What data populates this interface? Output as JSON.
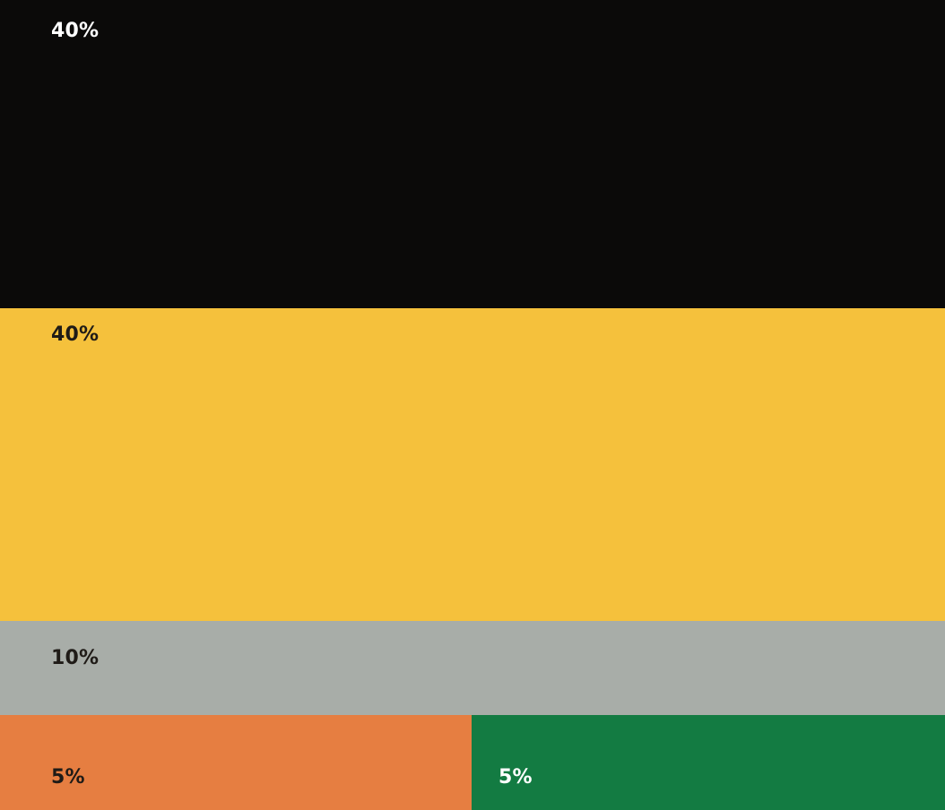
{
  "swatches": [
    {
      "id": "black",
      "label": "40%",
      "share_percent": 40,
      "color": "#0b0a09",
      "text_color": "#ffffff"
    },
    {
      "id": "yellow",
      "label": "40%",
      "share_percent": 40,
      "color": "#f5c13c",
      "text_color": "#1f1b17"
    },
    {
      "id": "gray",
      "label": "10%",
      "share_percent": 10,
      "color": "#a8ada8",
      "text_color": "#1f1b17"
    },
    {
      "id": "orange",
      "label": "5%",
      "share_percent": 5,
      "color": "#e67e41",
      "text_color": "#1f1b17"
    },
    {
      "id": "green",
      "label": "5%",
      "share_percent": 5,
      "color": "#137b42",
      "text_color": "#ffffff"
    }
  ]
}
